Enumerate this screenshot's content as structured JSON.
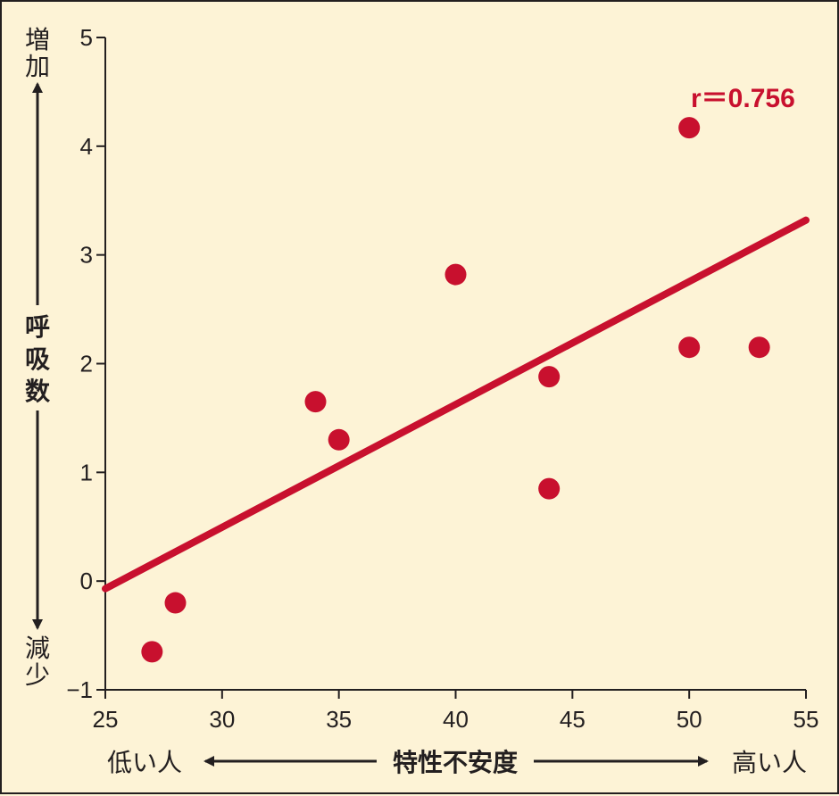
{
  "chart_data": {
    "type": "scatter",
    "x": [
      27,
      28,
      34,
      35,
      40,
      44,
      44,
      50,
      50,
      53
    ],
    "y": [
      -0.65,
      -0.2,
      1.65,
      1.3,
      2.82,
      1.88,
      0.85,
      4.17,
      2.15,
      2.15
    ],
    "xlim": [
      25,
      55
    ],
    "ylim": [
      -1,
      5
    ],
    "x_ticks": [
      25,
      30,
      35,
      40,
      45,
      50,
      55
    ],
    "y_ticks": [
      -1,
      0,
      1,
      2,
      3,
      4,
      5
    ],
    "x_tick_labels": [
      "25",
      "30",
      "35",
      "40",
      "45",
      "50",
      "55"
    ],
    "y_tick_labels": [
      "−1",
      "0",
      "1",
      "2",
      "3",
      "4",
      "5"
    ],
    "trendline": {
      "x": [
        25,
        55
      ],
      "y": [
        -0.07,
        3.32
      ]
    },
    "annotation": "r＝0.756",
    "xlabel": "特性不安度",
    "xlabel_left": "低い人",
    "xlabel_right": "高い人",
    "ylabel": "呼吸数",
    "ylabel_top": "増加",
    "ylabel_bottom": "減少",
    "grid": false
  },
  "colors": {
    "background": "#fdf3d6",
    "accent": "#c8102e",
    "ink": "#231f20"
  }
}
